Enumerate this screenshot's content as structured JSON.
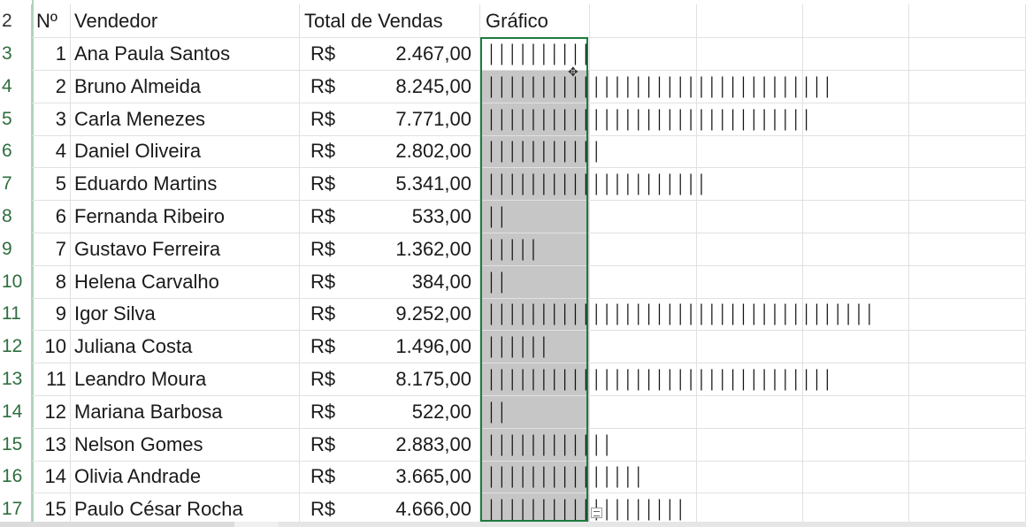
{
  "sheet": {
    "header": {
      "row_label": "2",
      "col_num": "Nº",
      "col_name": "Vendedor",
      "col_total": "Total de Vendas",
      "col_chart": "Gráfico"
    },
    "currency": "R$",
    "rows": [
      {
        "row": "3",
        "num": "1",
        "name": "Ana Paula Santos",
        "total": "2.467,00",
        "value": 2467
      },
      {
        "row": "4",
        "num": "2",
        "name": "Bruno Almeida",
        "total": "8.245,00",
        "value": 8245
      },
      {
        "row": "5",
        "num": "3",
        "name": "Carla Menezes",
        "total": "7.771,00",
        "value": 7771
      },
      {
        "row": "6",
        "num": "4",
        "name": "Daniel Oliveira",
        "total": "2.802,00",
        "value": 2802
      },
      {
        "row": "7",
        "num": "5",
        "name": "Eduardo Martins",
        "total": "5.341,00",
        "value": 5341
      },
      {
        "row": "8",
        "num": "6",
        "name": "Fernanda Ribeiro",
        "total": "533,00",
        "value": 533
      },
      {
        "row": "9",
        "num": "7",
        "name": "Gustavo Ferreira",
        "total": "1.362,00",
        "value": 1362
      },
      {
        "row": "10",
        "num": "8",
        "name": "Helena Carvalho",
        "total": "384,00",
        "value": 384
      },
      {
        "row": "11",
        "num": "9",
        "name": "Igor Silva",
        "total": "9.252,00",
        "value": 9252
      },
      {
        "row": "12",
        "num": "10",
        "name": "Juliana Costa",
        "total": "1.496,00",
        "value": 1496
      },
      {
        "row": "13",
        "num": "11",
        "name": "Leandro Moura",
        "total": "8.175,00",
        "value": 8175
      },
      {
        "row": "14",
        "num": "12",
        "name": "Mariana Barbosa",
        "total": "522,00",
        "value": 522
      },
      {
        "row": "15",
        "num": "13",
        "name": "Nelson Gomes",
        "total": "2.883,00",
        "value": 2883
      },
      {
        "row": "16",
        "num": "14",
        "name": "Olivia Andrade",
        "total": "3.665,00",
        "value": 3665
      },
      {
        "row": "17",
        "num": "15",
        "name": "Paulo César Rocha",
        "total": "4.666,00",
        "value": 4666
      }
    ]
  },
  "icons": {
    "cursor": "plus-cursor-icon",
    "fill_handle": "quick-analysis-icon"
  },
  "colors": {
    "selection_border": "#1f7a3f",
    "selection_fill": "#c6c6c6",
    "row_header_text": "#2e6e3e"
  }
}
